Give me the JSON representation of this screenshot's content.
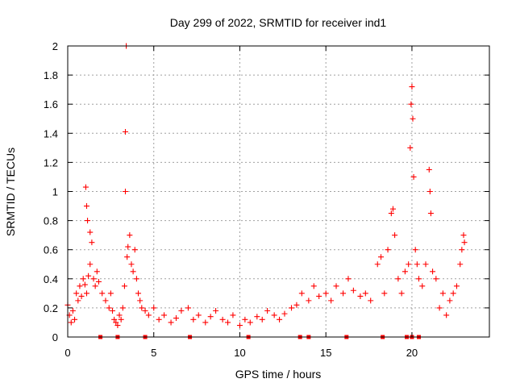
{
  "chart_data": {
    "type": "scatter",
    "title": "Day 299 of 2022, SRMTID for receiver ind1",
    "xlabel": "GPS time / hours",
    "ylabel": "SRMTID / TECUs",
    "xlim": [
      0,
      24.5
    ],
    "ylim": [
      0,
      2
    ],
    "grid": true,
    "x_ticks": [
      0,
      5,
      10,
      15,
      20
    ],
    "x_tick_labels": [
      "0",
      "5",
      "10",
      "15",
      "20"
    ],
    "y_ticks": [
      0,
      0.2,
      0.4,
      0.6,
      0.8,
      1,
      1.2,
      1.4,
      1.6,
      1.8,
      2
    ],
    "y_tick_labels": [
      "0",
      "0.2",
      "0.4",
      "0.6",
      "0.8",
      "1",
      "1.2",
      "1.4",
      "1.6",
      "1.8",
      "2"
    ],
    "series": [
      {
        "name": "SRMTID",
        "marker": "plus",
        "color": "#ff0000",
        "points": [
          [
            0.0,
            0.22
          ],
          [
            0.1,
            0.15
          ],
          [
            0.2,
            0.1
          ],
          [
            0.3,
            0.18
          ],
          [
            0.4,
            0.12
          ],
          [
            0.5,
            0.3
          ],
          [
            0.6,
            0.25
          ],
          [
            0.7,
            0.35
          ],
          [
            0.8,
            0.28
          ],
          [
            0.9,
            0.4
          ],
          [
            1.0,
            0.36
          ],
          [
            1.1,
            0.3
          ],
          [
            1.2,
            0.42
          ],
          [
            1.3,
            0.5
          ],
          [
            1.05,
            1.03
          ],
          [
            1.1,
            0.9
          ],
          [
            1.15,
            0.8
          ],
          [
            1.3,
            0.72
          ],
          [
            1.4,
            0.65
          ],
          [
            1.5,
            0.4
          ],
          [
            1.6,
            0.35
          ],
          [
            1.7,
            0.45
          ],
          [
            1.8,
            0.38
          ],
          [
            2.0,
            0.3
          ],
          [
            2.2,
            0.25
          ],
          [
            2.4,
            0.2
          ],
          [
            2.5,
            0.3
          ],
          [
            2.6,
            0.18
          ],
          [
            2.7,
            0.12
          ],
          [
            2.8,
            0.1
          ],
          [
            2.9,
            0.08
          ],
          [
            3.0,
            0.15
          ],
          [
            3.1,
            0.12
          ],
          [
            3.2,
            0.2
          ],
          [
            3.3,
            0.35
          ],
          [
            3.35,
            1.41
          ],
          [
            3.35,
            1.0
          ],
          [
            3.4,
            2.0
          ],
          [
            3.45,
            0.55
          ],
          [
            3.5,
            0.62
          ],
          [
            3.6,
            0.7
          ],
          [
            3.7,
            0.5
          ],
          [
            3.8,
            0.45
          ],
          [
            3.9,
            0.6
          ],
          [
            4.0,
            0.4
          ],
          [
            4.1,
            0.3
          ],
          [
            4.2,
            0.25
          ],
          [
            4.3,
            0.2
          ],
          [
            4.5,
            0.18
          ],
          [
            4.7,
            0.15
          ],
          [
            5.0,
            0.2
          ],
          [
            5.3,
            0.12
          ],
          [
            5.6,
            0.15
          ],
          [
            6.0,
            0.1
          ],
          [
            6.3,
            0.13
          ],
          [
            6.6,
            0.18
          ],
          [
            7.0,
            0.2
          ],
          [
            7.3,
            0.12
          ],
          [
            7.6,
            0.15
          ],
          [
            8.0,
            0.1
          ],
          [
            8.3,
            0.14
          ],
          [
            8.6,
            0.18
          ],
          [
            9.0,
            0.12
          ],
          [
            9.3,
            0.1
          ],
          [
            9.6,
            0.15
          ],
          [
            10.0,
            0.08
          ],
          [
            10.3,
            0.12
          ],
          [
            10.6,
            0.1
          ],
          [
            11.0,
            0.14
          ],
          [
            11.3,
            0.12
          ],
          [
            11.6,
            0.18
          ],
          [
            12.0,
            0.15
          ],
          [
            12.3,
            0.12
          ],
          [
            12.6,
            0.16
          ],
          [
            13.0,
            0.2
          ],
          [
            13.3,
            0.22
          ],
          [
            13.6,
            0.3
          ],
          [
            14.0,
            0.25
          ],
          [
            14.3,
            0.35
          ],
          [
            14.6,
            0.28
          ],
          [
            15.0,
            0.3
          ],
          [
            15.3,
            0.25
          ],
          [
            15.6,
            0.35
          ],
          [
            16.0,
            0.3
          ],
          [
            16.3,
            0.4
          ],
          [
            16.6,
            0.32
          ],
          [
            17.0,
            0.28
          ],
          [
            17.3,
            0.3
          ],
          [
            17.6,
            0.25
          ],
          [
            18.0,
            0.5
          ],
          [
            18.2,
            0.55
          ],
          [
            18.4,
            0.3
          ],
          [
            18.6,
            0.6
          ],
          [
            18.8,
            0.85
          ],
          [
            18.9,
            0.88
          ],
          [
            19.0,
            0.7
          ],
          [
            19.2,
            0.4
          ],
          [
            19.4,
            0.3
          ],
          [
            19.6,
            0.45
          ],
          [
            19.8,
            0.5
          ],
          [
            19.9,
            1.3
          ],
          [
            19.95,
            1.6
          ],
          [
            20.0,
            1.72
          ],
          [
            20.05,
            1.5
          ],
          [
            20.1,
            1.1
          ],
          [
            20.2,
            0.6
          ],
          [
            20.3,
            0.5
          ],
          [
            20.4,
            0.4
          ],
          [
            20.6,
            0.35
          ],
          [
            20.8,
            0.5
          ],
          [
            21.0,
            1.15
          ],
          [
            21.05,
            1.0
          ],
          [
            21.1,
            0.85
          ],
          [
            21.2,
            0.45
          ],
          [
            21.4,
            0.4
          ],
          [
            21.6,
            0.2
          ],
          [
            21.8,
            0.3
          ],
          [
            22.0,
            0.15
          ],
          [
            22.2,
            0.25
          ],
          [
            22.4,
            0.3
          ],
          [
            22.6,
            0.35
          ],
          [
            22.8,
            0.5
          ],
          [
            22.9,
            0.6
          ],
          [
            23.0,
            0.7
          ],
          [
            23.05,
            0.65
          ]
        ]
      }
    ],
    "baseline_markers_x": [
      1.9,
      2.9,
      4.5,
      7.1,
      10.5,
      13.5,
      14.0,
      16.2,
      18.3,
      19.7,
      20.0,
      20.4
    ]
  }
}
